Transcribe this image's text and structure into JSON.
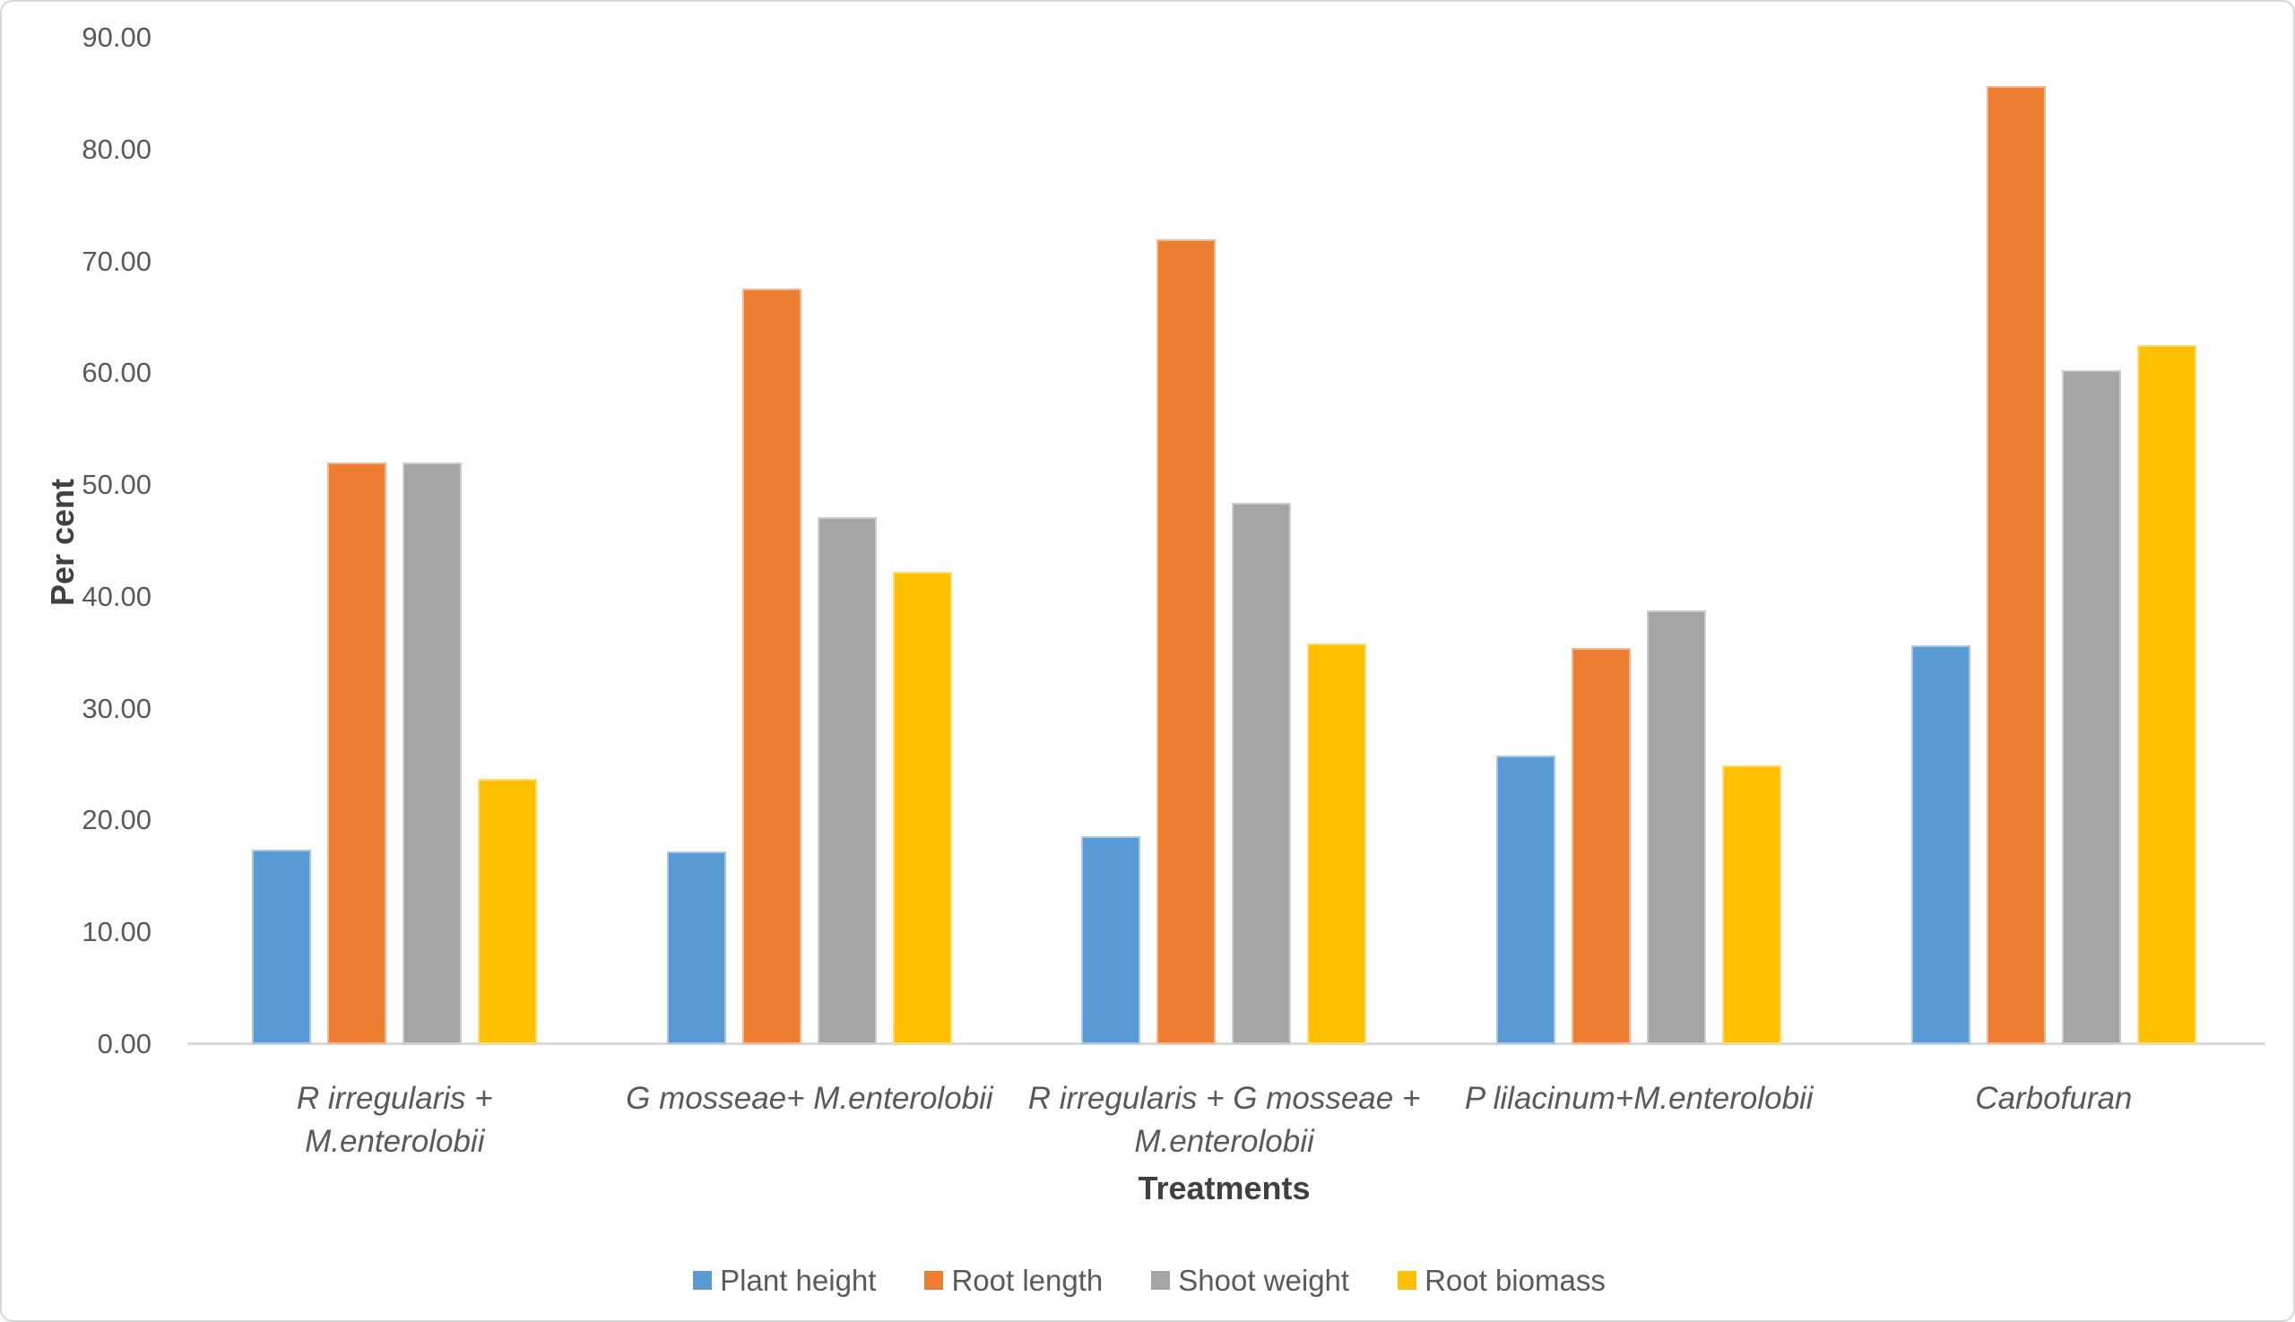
{
  "chart_data": {
    "type": "bar",
    "title": "",
    "xlabel": "Treatments",
    "ylabel": "Per cent",
    "categories": [
      "R irregularis +\nM.enterolobii",
      "G mosseae+ M.enterolobii",
      "R irregularis + G mosseae +\nM.enterolobii",
      "P lilacinum+M.enterolobii",
      "Carbofuran"
    ],
    "series": [
      {
        "name": "Plant height",
        "color": "#5B9BD5",
        "values": [
          17.4,
          17.2,
          18.6,
          25.8,
          35.7
        ]
      },
      {
        "name": "Root length",
        "color": "#ED7D31",
        "values": [
          52.0,
          67.6,
          72.0,
          35.4,
          85.7
        ]
      },
      {
        "name": "Shoot weight",
        "color": "#A5A5A5",
        "values": [
          52.0,
          47.1,
          48.4,
          38.8,
          60.3
        ]
      },
      {
        "name": "Root biomass",
        "color": "#FFC000",
        "values": [
          23.7,
          42.2,
          35.8,
          24.9,
          62.5
        ]
      }
    ],
    "ylim": [
      0,
      90
    ],
    "ytick_step": 10,
    "ytick_labels": [
      "0.00",
      "10.00",
      "20.00",
      "30.00",
      "40.00",
      "50.00",
      "60.00",
      "70.00",
      "80.00",
      "90.00"
    ],
    "grid": false,
    "legend_position": "bottom",
    "axis_line_color": "#D9D9D9",
    "text_color": "#595959"
  }
}
